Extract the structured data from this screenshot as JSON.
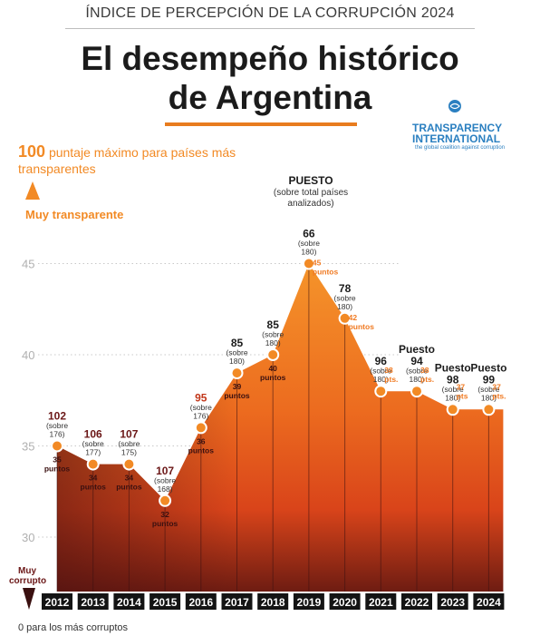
{
  "header": {
    "subtitle": "ÍNDICE DE PERCEPCIÓN DE LA CORRUPCIÓN 2024",
    "title_line1": "El desempeño histórico",
    "title_line2": "de Argentina"
  },
  "logo": {
    "name": "TRANSPARENCY INTERNATIONAL",
    "tagline": "the global coalition against corruption"
  },
  "notes": {
    "max_value": "100",
    "max_text": "puntaje máximo para países más transparentes",
    "muy_transparente": "Muy transparente",
    "muy_corrupto": "Muy corrupto",
    "min_text": "0 para los más corruptos",
    "puesto_title": "PUESTO",
    "puesto_sub": "(sobre total países analizados)"
  },
  "colors": {
    "orange": "#f28a25",
    "deep_orange": "#e2541b",
    "dark_red": "#3a1010",
    "brand_blue": "#2a7fc0"
  },
  "chart_data": {
    "type": "area",
    "x": [
      "2012",
      "2013",
      "2014",
      "2015",
      "2016",
      "2017",
      "2018",
      "2019",
      "2020",
      "2021",
      "2022",
      "2023",
      "2024"
    ],
    "values": [
      35,
      34,
      34,
      32,
      36,
      39,
      40,
      45,
      42,
      38,
      38,
      37,
      37
    ],
    "ylim": [
      25,
      47
    ],
    "y_ticks": [
      "30",
      "35",
      "40",
      "45"
    ],
    "grid": true,
    "rank_labels": [
      {
        "puesto": "102",
        "sobre": "(sobre 176)",
        "score": "35 puntos"
      },
      {
        "puesto": "106",
        "sobre": "(sobre 177)",
        "score": "34 puntos"
      },
      {
        "puesto": "107",
        "sobre": "(sobre 175)",
        "score": "34 puntos"
      },
      {
        "puesto": "107",
        "sobre": "(sobre 168)",
        "score": "32 puntos"
      },
      {
        "puesto": "95",
        "sobre": "(sobre 176)",
        "score": "36 puntos"
      },
      {
        "puesto": "85",
        "sobre": "(sobre 180)",
        "score": "39 puntos"
      },
      {
        "puesto": "85",
        "sobre": "(sobre 180)",
        "score": "40 puntos"
      },
      {
        "puesto": "66",
        "sobre": "(sobre 180)",
        "score": "45 puntos"
      },
      {
        "puesto": "78",
        "sobre": "(sobre 180)",
        "score": "42 puntos"
      },
      {
        "puesto": "96",
        "sobre": "(sobre 180)",
        "score": "38 pts."
      },
      {
        "puesto": "Puesto 94",
        "sobre": "(sobre 180)",
        "score": "38 pts."
      },
      {
        "puesto": "Puesto 98",
        "sobre": "(sobre 180)",
        "score": "37 pts"
      },
      {
        "puesto": "Puesto 99",
        "sobre": "(sobre 180)",
        "score": "37 pts."
      }
    ]
  }
}
